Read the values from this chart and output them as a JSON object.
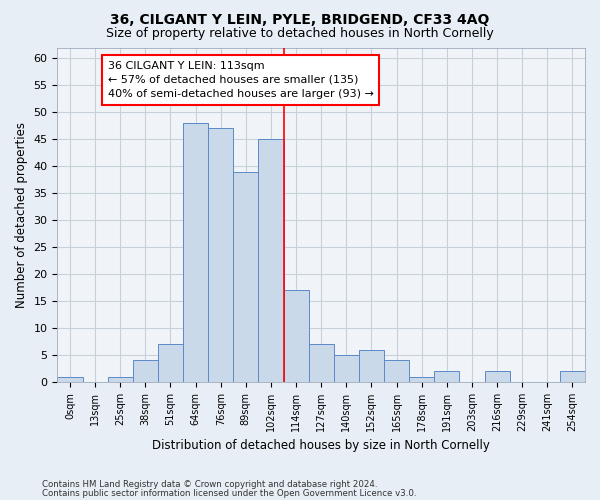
{
  "title": "36, CILGANT Y LEIN, PYLE, BRIDGEND, CF33 4AQ",
  "subtitle": "Size of property relative to detached houses in North Cornelly",
  "xlabel": "Distribution of detached houses by size in North Cornelly",
  "ylabel": "Number of detached properties",
  "bar_labels": [
    "0sqm",
    "13sqm",
    "25sqm",
    "38sqm",
    "51sqm",
    "64sqm",
    "76sqm",
    "89sqm",
    "102sqm",
    "114sqm",
    "127sqm",
    "140sqm",
    "152sqm",
    "165sqm",
    "178sqm",
    "191sqm",
    "203sqm",
    "216sqm",
    "229sqm",
    "241sqm",
    "254sqm"
  ],
  "bar_values": [
    1,
    0,
    1,
    4,
    7,
    48,
    47,
    39,
    45,
    17,
    7,
    5,
    6,
    4,
    1,
    2,
    0,
    2,
    0,
    0,
    2
  ],
  "bar_color": "#c9d9ea",
  "bar_edge_color": "#5b8ac7",
  "redline_x": 8.5,
  "annotation_text": "36 CILGANT Y LEIN: 113sqm\n← 57% of detached houses are smaller (135)\n40% of semi-detached houses are larger (93) →",
  "annotation_box_color": "white",
  "annotation_box_edge_color": "red",
  "ylim": [
    0,
    62
  ],
  "yticks": [
    0,
    5,
    10,
    15,
    20,
    25,
    30,
    35,
    40,
    45,
    50,
    55,
    60
  ],
  "footer_line1": "Contains HM Land Registry data © Crown copyright and database right 2024.",
  "footer_line2": "Contains public sector information licensed under the Open Government Licence v3.0.",
  "bg_color": "#e8eef5",
  "plot_bg_color": "#f0f4f8",
  "grid_color": "#c8d0dc",
  "title_fontsize": 10,
  "subtitle_fontsize": 9
}
